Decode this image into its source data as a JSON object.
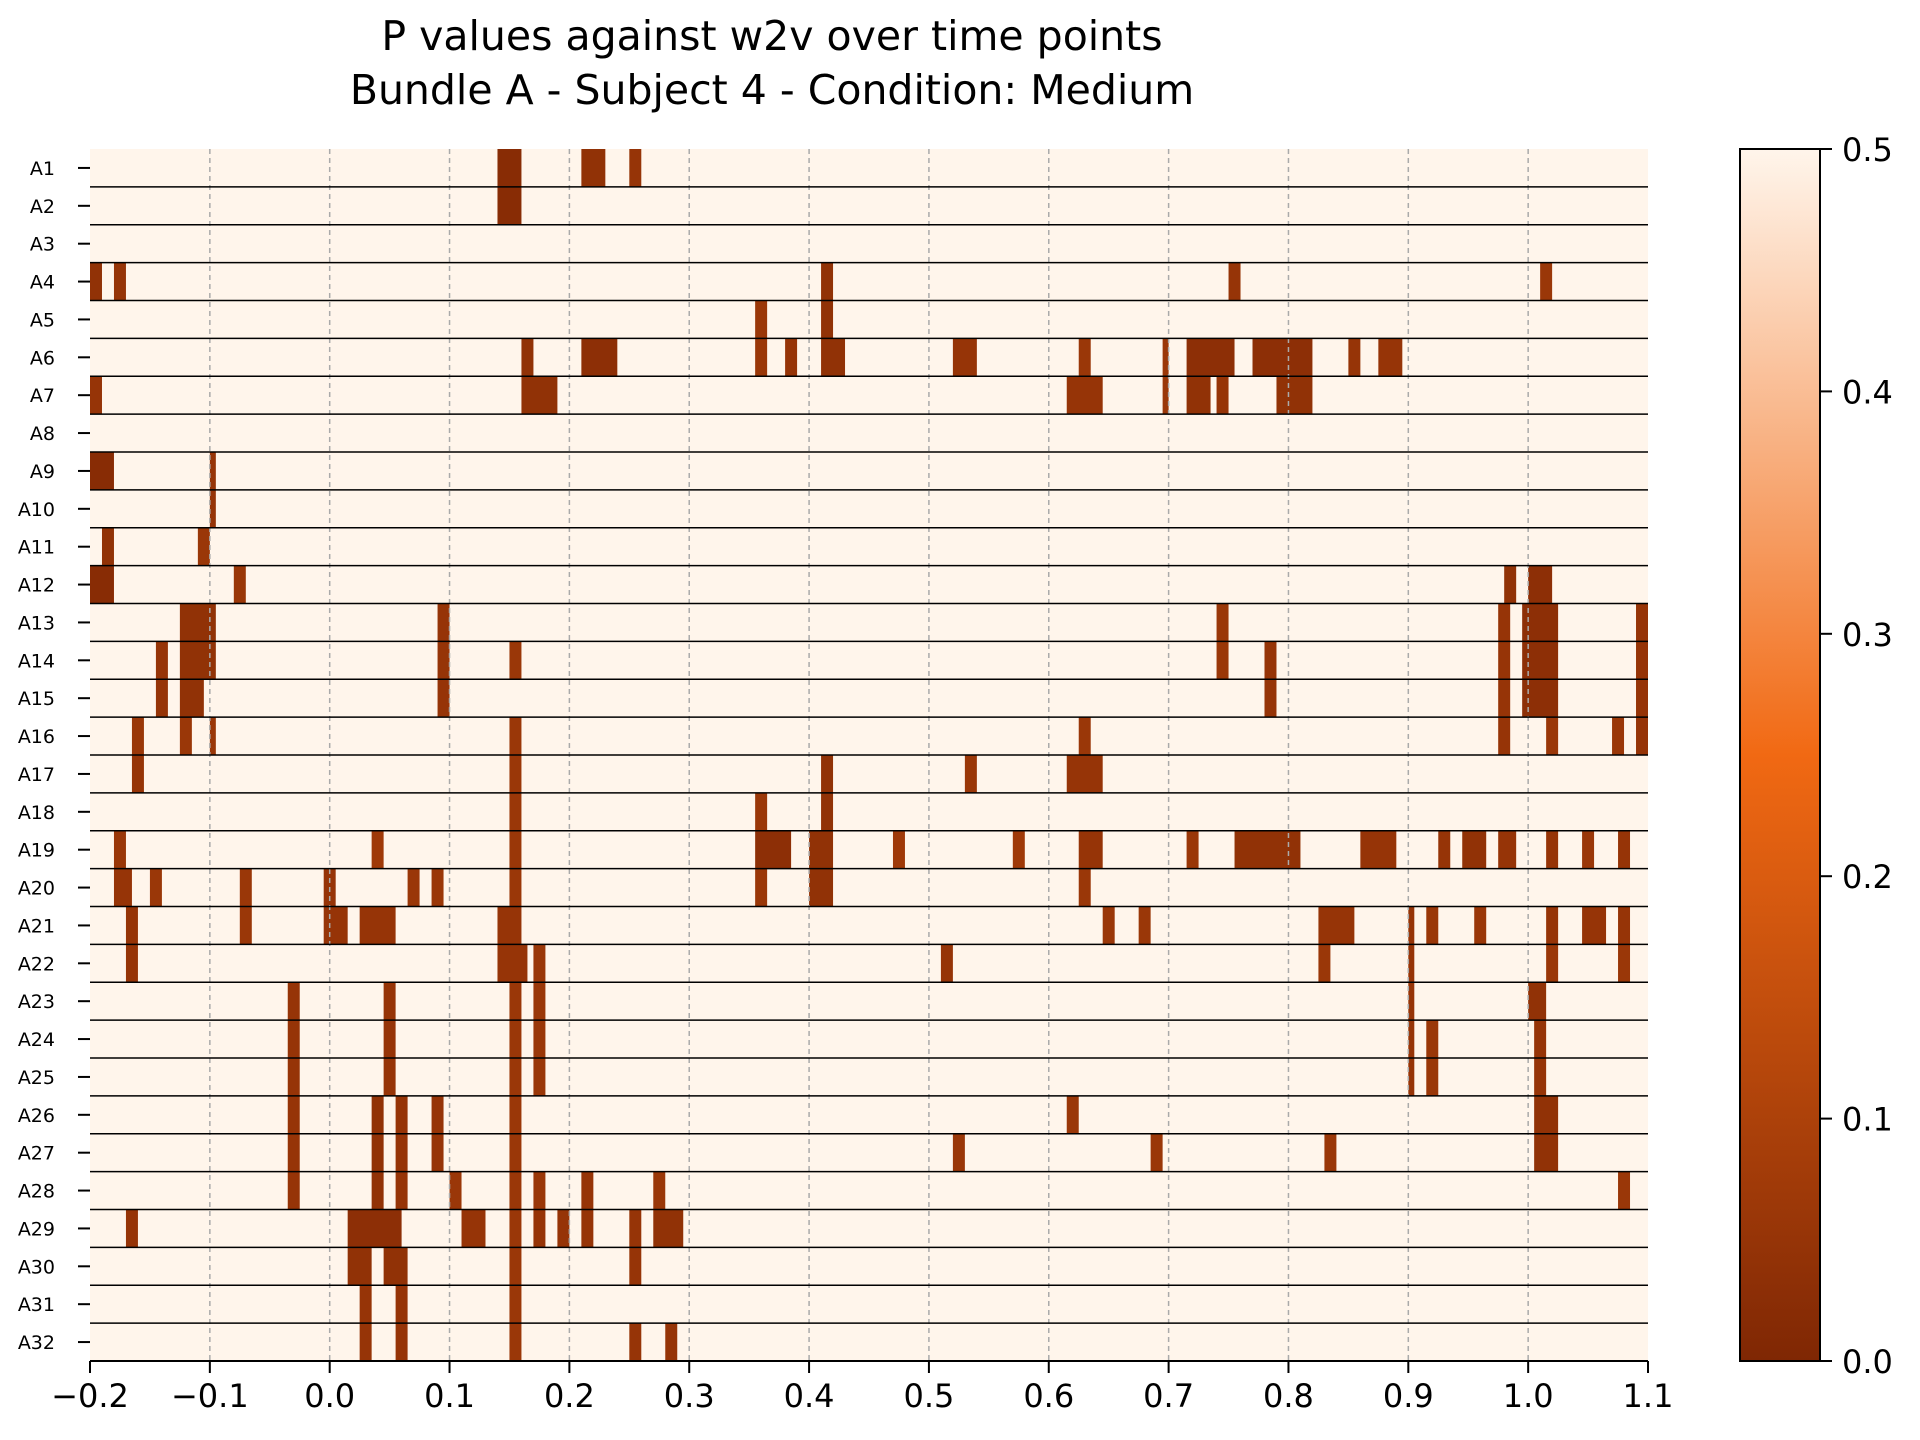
{
  "colors": {
    "cmap_low": "#7f2704",
    "cmap_mid": "#f16913",
    "cmap_high": "#fff5eb",
    "row_separator": "#000000",
    "grid": "#aaaaaa"
  },
  "chart_data": {
    "type": "heatmap",
    "title": "P values against w2v over time points",
    "subtitle": "Bundle A - Subject 4 - Condition: Medium",
    "xlabel": "",
    "ylabel": "",
    "xlim": [
      -0.2,
      1.1
    ],
    "xticks": [
      "−0.2",
      "−0.1",
      "0.0",
      "0.1",
      "0.2",
      "0.3",
      "0.4",
      "0.5",
      "0.6",
      "0.7",
      "0.8",
      "0.9",
      "1.0",
      "1.1"
    ],
    "xtick_values": [
      -0.2,
      -0.1,
      0.0,
      0.1,
      0.2,
      0.3,
      0.4,
      0.5,
      0.6,
      0.7,
      0.8,
      0.9,
      1.0,
      1.1
    ],
    "grid": "vertical dashed at x ticks",
    "colorbar": {
      "range": [
        0.0,
        0.5
      ],
      "ticks": [
        "0.0",
        "0.1",
        "0.2",
        "0.3",
        "0.4",
        "0.5"
      ],
      "tick_values": [
        0.0,
        0.1,
        0.2,
        0.3,
        0.4,
        0.5
      ],
      "placement": "right"
    },
    "background_p_value": 0.5,
    "rows": [
      {
        "label": "A1",
        "segments": [
          [
            0.14,
            0.16,
            0.02
          ],
          [
            0.21,
            0.23,
            0.04
          ],
          [
            0.25,
            0.26,
            0.05
          ]
        ]
      },
      {
        "label": "A2",
        "segments": [
          [
            0.14,
            0.16,
            0.02
          ]
        ]
      },
      {
        "label": "A3",
        "segments": []
      },
      {
        "label": "A4",
        "segments": [
          [
            -0.2,
            -0.19,
            0.04
          ],
          [
            -0.18,
            -0.17,
            0.05
          ],
          [
            0.41,
            0.42,
            0.04
          ],
          [
            0.75,
            0.76,
            0.05
          ],
          [
            1.01,
            1.02,
            0.06
          ]
        ]
      },
      {
        "label": "A5",
        "segments": [
          [
            0.355,
            0.365,
            0.06
          ],
          [
            0.41,
            0.42,
            0.04
          ]
        ]
      },
      {
        "label": "A6",
        "segments": [
          [
            0.16,
            0.17,
            0.04
          ],
          [
            0.21,
            0.24,
            0.03
          ],
          [
            0.355,
            0.365,
            0.06
          ],
          [
            0.38,
            0.39,
            0.05
          ],
          [
            0.41,
            0.43,
            0.04
          ],
          [
            0.52,
            0.54,
            0.05
          ],
          [
            0.625,
            0.635,
            0.06
          ],
          [
            0.695,
            0.7,
            0.06
          ],
          [
            0.715,
            0.755,
            0.03
          ],
          [
            0.77,
            0.82,
            0.03
          ],
          [
            0.85,
            0.86,
            0.05
          ],
          [
            0.875,
            0.895,
            0.05
          ]
        ]
      },
      {
        "label": "A7",
        "segments": [
          [
            -0.2,
            -0.19,
            0.05
          ],
          [
            0.16,
            0.19,
            0.04
          ],
          [
            0.615,
            0.645,
            0.05
          ],
          [
            0.695,
            0.7,
            0.06
          ],
          [
            0.715,
            0.735,
            0.04
          ],
          [
            0.74,
            0.75,
            0.05
          ],
          [
            0.79,
            0.82,
            0.04
          ]
        ]
      },
      {
        "label": "A8",
        "segments": []
      },
      {
        "label": "A9",
        "segments": [
          [
            -0.2,
            -0.18,
            0.02
          ],
          [
            -0.1,
            -0.095,
            0.05
          ]
        ]
      },
      {
        "label": "A10",
        "segments": [
          [
            -0.1,
            -0.095,
            0.05
          ]
        ]
      },
      {
        "label": "A11",
        "segments": [
          [
            -0.19,
            -0.18,
            0.04
          ],
          [
            -0.11,
            -0.1,
            0.06
          ]
        ]
      },
      {
        "label": "A12",
        "segments": [
          [
            -0.2,
            -0.18,
            0.02
          ],
          [
            -0.08,
            -0.07,
            0.06
          ],
          [
            0.98,
            0.99,
            0.04
          ],
          [
            1.0,
            1.02,
            0.03
          ]
        ]
      },
      {
        "label": "A13",
        "segments": [
          [
            -0.125,
            -0.095,
            0.04
          ],
          [
            0.09,
            0.1,
            0.05
          ],
          [
            0.74,
            0.75,
            0.06
          ],
          [
            0.975,
            0.985,
            0.05
          ],
          [
            0.995,
            1.025,
            0.03
          ],
          [
            1.09,
            1.1,
            0.05
          ]
        ]
      },
      {
        "label": "A14",
        "segments": [
          [
            -0.145,
            -0.135,
            0.05
          ],
          [
            -0.125,
            -0.095,
            0.04
          ],
          [
            0.09,
            0.1,
            0.05
          ],
          [
            0.15,
            0.16,
            0.06
          ],
          [
            0.74,
            0.75,
            0.06
          ],
          [
            0.78,
            0.79,
            0.05
          ],
          [
            0.975,
            0.985,
            0.05
          ],
          [
            0.995,
            1.025,
            0.03
          ],
          [
            1.09,
            1.1,
            0.05
          ]
        ]
      },
      {
        "label": "A15",
        "segments": [
          [
            -0.145,
            -0.135,
            0.05
          ],
          [
            -0.125,
            -0.105,
            0.04
          ],
          [
            0.09,
            0.1,
            0.05
          ],
          [
            0.78,
            0.79,
            0.05
          ],
          [
            0.975,
            0.985,
            0.05
          ],
          [
            0.995,
            1.025,
            0.03
          ],
          [
            1.09,
            1.1,
            0.05
          ]
        ]
      },
      {
        "label": "A16",
        "segments": [
          [
            -0.165,
            -0.155,
            0.06
          ],
          [
            -0.125,
            -0.115,
            0.06
          ],
          [
            -0.1,
            -0.095,
            0.06
          ],
          [
            0.15,
            0.16,
            0.06
          ],
          [
            0.625,
            0.635,
            0.06
          ],
          [
            0.975,
            0.985,
            0.05
          ],
          [
            1.015,
            1.025,
            0.06
          ],
          [
            1.07,
            1.08,
            0.06
          ],
          [
            1.09,
            1.1,
            0.05
          ]
        ]
      },
      {
        "label": "A17",
        "segments": [
          [
            -0.165,
            -0.155,
            0.05
          ],
          [
            0.15,
            0.16,
            0.06
          ],
          [
            0.41,
            0.42,
            0.04
          ],
          [
            0.53,
            0.54,
            0.06
          ],
          [
            0.615,
            0.645,
            0.05
          ]
        ]
      },
      {
        "label": "A18",
        "segments": [
          [
            0.15,
            0.16,
            0.06
          ],
          [
            0.355,
            0.365,
            0.06
          ],
          [
            0.41,
            0.42,
            0.04
          ]
        ]
      },
      {
        "label": "A19",
        "segments": [
          [
            -0.18,
            -0.17,
            0.06
          ],
          [
            0.035,
            0.045,
            0.07
          ],
          [
            0.15,
            0.16,
            0.06
          ],
          [
            0.355,
            0.385,
            0.03
          ],
          [
            0.4,
            0.42,
            0.04
          ],
          [
            0.47,
            0.48,
            0.07
          ],
          [
            0.57,
            0.58,
            0.07
          ],
          [
            0.625,
            0.645,
            0.05
          ],
          [
            0.715,
            0.725,
            0.06
          ],
          [
            0.755,
            0.81,
            0.04
          ],
          [
            0.86,
            0.89,
            0.05
          ],
          [
            0.925,
            0.935,
            0.05
          ],
          [
            0.945,
            0.965,
            0.04
          ],
          [
            0.975,
            0.99,
            0.05
          ],
          [
            1.015,
            1.025,
            0.05
          ],
          [
            1.045,
            1.055,
            0.06
          ],
          [
            1.075,
            1.085,
            0.05
          ]
        ]
      },
      {
        "label": "A20",
        "segments": [
          [
            -0.18,
            -0.165,
            0.05
          ],
          [
            -0.15,
            -0.14,
            0.06
          ],
          [
            -0.075,
            -0.065,
            0.06
          ],
          [
            -0.005,
            0.005,
            0.05
          ],
          [
            0.065,
            0.075,
            0.06
          ],
          [
            0.085,
            0.095,
            0.06
          ],
          [
            0.15,
            0.16,
            0.06
          ],
          [
            0.355,
            0.365,
            0.06
          ],
          [
            0.4,
            0.42,
            0.04
          ],
          [
            0.625,
            0.635,
            0.06
          ]
        ]
      },
      {
        "label": "A21",
        "segments": [
          [
            -0.17,
            -0.16,
            0.05
          ],
          [
            -0.075,
            -0.065,
            0.06
          ],
          [
            -0.005,
            0.015,
            0.05
          ],
          [
            0.025,
            0.055,
            0.05
          ],
          [
            0.14,
            0.16,
            0.05
          ],
          [
            0.645,
            0.655,
            0.06
          ],
          [
            0.675,
            0.685,
            0.06
          ],
          [
            0.825,
            0.855,
            0.05
          ],
          [
            0.9,
            0.905,
            0.05
          ],
          [
            0.915,
            0.925,
            0.06
          ],
          [
            0.955,
            0.965,
            0.06
          ],
          [
            1.015,
            1.025,
            0.05
          ],
          [
            1.045,
            1.065,
            0.05
          ],
          [
            1.075,
            1.085,
            0.05
          ]
        ]
      },
      {
        "label": "A22",
        "segments": [
          [
            -0.17,
            -0.16,
            0.05
          ],
          [
            0.14,
            0.165,
            0.05
          ],
          [
            0.17,
            0.18,
            0.06
          ],
          [
            0.51,
            0.52,
            0.05
          ],
          [
            0.825,
            0.835,
            0.06
          ],
          [
            0.9,
            0.905,
            0.05
          ],
          [
            1.015,
            1.025,
            0.06
          ],
          [
            1.075,
            1.085,
            0.06
          ]
        ]
      },
      {
        "label": "A23",
        "segments": [
          [
            -0.035,
            -0.025,
            0.05
          ],
          [
            0.045,
            0.055,
            0.05
          ],
          [
            0.15,
            0.16,
            0.06
          ],
          [
            0.17,
            0.18,
            0.06
          ],
          [
            0.9,
            0.905,
            0.05
          ],
          [
            1.0,
            1.015,
            0.04
          ]
        ]
      },
      {
        "label": "A24",
        "segments": [
          [
            -0.035,
            -0.025,
            0.05
          ],
          [
            0.045,
            0.055,
            0.05
          ],
          [
            0.15,
            0.16,
            0.06
          ],
          [
            0.17,
            0.18,
            0.06
          ],
          [
            0.9,
            0.905,
            0.05
          ],
          [
            0.915,
            0.925,
            0.06
          ],
          [
            1.005,
            1.015,
            0.05
          ]
        ]
      },
      {
        "label": "A25",
        "segments": [
          [
            -0.035,
            -0.025,
            0.05
          ],
          [
            0.045,
            0.055,
            0.05
          ],
          [
            0.15,
            0.16,
            0.06
          ],
          [
            0.17,
            0.18,
            0.06
          ],
          [
            0.9,
            0.905,
            0.05
          ],
          [
            0.915,
            0.925,
            0.06
          ],
          [
            1.005,
            1.015,
            0.05
          ]
        ]
      },
      {
        "label": "A26",
        "segments": [
          [
            -0.035,
            -0.025,
            0.05
          ],
          [
            0.035,
            0.045,
            0.04
          ],
          [
            0.055,
            0.065,
            0.05
          ],
          [
            0.085,
            0.095,
            0.05
          ],
          [
            0.15,
            0.16,
            0.06
          ],
          [
            0.615,
            0.625,
            0.06
          ],
          [
            1.005,
            1.025,
            0.04
          ]
        ]
      },
      {
        "label": "A27",
        "segments": [
          [
            -0.035,
            -0.025,
            0.05
          ],
          [
            0.035,
            0.045,
            0.04
          ],
          [
            0.055,
            0.065,
            0.05
          ],
          [
            0.085,
            0.095,
            0.05
          ],
          [
            0.15,
            0.16,
            0.06
          ],
          [
            0.52,
            0.53,
            0.06
          ],
          [
            0.685,
            0.695,
            0.06
          ],
          [
            0.83,
            0.84,
            0.06
          ],
          [
            1.005,
            1.025,
            0.04
          ]
        ]
      },
      {
        "label": "A28",
        "segments": [
          [
            -0.035,
            -0.025,
            0.05
          ],
          [
            0.035,
            0.045,
            0.04
          ],
          [
            0.055,
            0.065,
            0.05
          ],
          [
            0.1,
            0.11,
            0.06
          ],
          [
            0.15,
            0.16,
            0.06
          ],
          [
            0.17,
            0.18,
            0.06
          ],
          [
            0.21,
            0.22,
            0.05
          ],
          [
            0.27,
            0.28,
            0.06
          ],
          [
            1.075,
            1.085,
            0.06
          ]
        ]
      },
      {
        "label": "A29",
        "segments": [
          [
            -0.17,
            -0.16,
            0.05
          ],
          [
            0.015,
            0.06,
            0.03
          ],
          [
            0.11,
            0.13,
            0.05
          ],
          [
            0.15,
            0.16,
            0.06
          ],
          [
            0.17,
            0.18,
            0.05
          ],
          [
            0.19,
            0.2,
            0.05
          ],
          [
            0.21,
            0.22,
            0.05
          ],
          [
            0.25,
            0.26,
            0.05
          ],
          [
            0.27,
            0.295,
            0.04
          ]
        ]
      },
      {
        "label": "A30",
        "segments": [
          [
            0.015,
            0.035,
            0.04
          ],
          [
            0.045,
            0.065,
            0.04
          ],
          [
            0.15,
            0.16,
            0.06
          ],
          [
            0.25,
            0.26,
            0.05
          ]
        ]
      },
      {
        "label": "A31",
        "segments": [
          [
            0.025,
            0.035,
            0.05
          ],
          [
            0.055,
            0.065,
            0.05
          ],
          [
            0.15,
            0.16,
            0.06
          ]
        ]
      },
      {
        "label": "A32",
        "segments": [
          [
            0.025,
            0.035,
            0.05
          ],
          [
            0.055,
            0.065,
            0.05
          ],
          [
            0.15,
            0.16,
            0.06
          ],
          [
            0.25,
            0.26,
            0.05
          ],
          [
            0.28,
            0.29,
            0.05
          ]
        ]
      }
    ]
  }
}
